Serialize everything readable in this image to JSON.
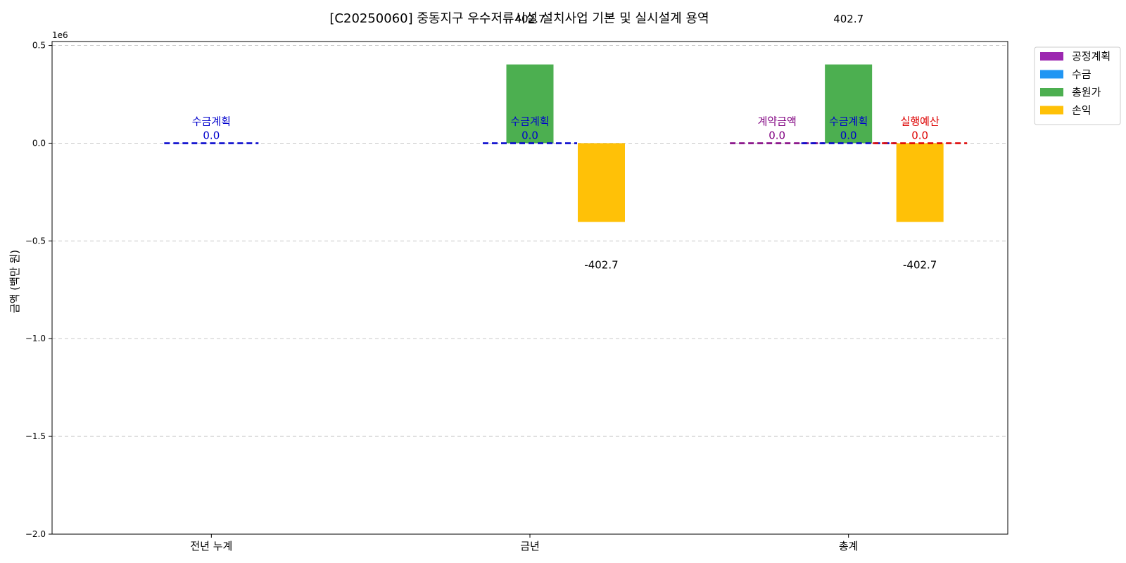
{
  "chart_data": {
    "type": "bar",
    "title": "[C20250060] 중동지구 우수저류시설 설치사업 기본 및 실시설계 용역",
    "ylabel": "금액 (백만 원)",
    "xlabel": "",
    "y_offset_label": "1e6",
    "categories": [
      "전년 누계",
      "금년",
      "총계"
    ],
    "ylim": [
      -2000000,
      520000
    ],
    "yticks": [
      0.5,
      0.0,
      -0.5,
      -1.0,
      -1.5,
      -2.0
    ],
    "yticks_scale": 1000000,
    "ytick_labels": [
      "0.5",
      "0.0",
      "−0.5",
      "−1.0",
      "−1.5",
      "−2.0"
    ],
    "grid": true,
    "legend_position": "upper-right-outside",
    "series": [
      {
        "name": "공정계획",
        "color": "#9C27B0",
        "values": [
          null,
          null,
          null
        ]
      },
      {
        "name": "수금",
        "color": "#2196F3",
        "values": [
          null,
          null,
          null
        ]
      },
      {
        "name": "총원가",
        "color": "#4CAF50",
        "values": [
          null,
          402700,
          402700
        ]
      },
      {
        "name": "손익",
        "color": "#FFC107",
        "values": [
          null,
          -402700,
          -402700
        ]
      }
    ],
    "bar_labels": [
      {
        "category": 1,
        "series": 2,
        "text": "402.7"
      },
      {
        "category": 1,
        "series": 3,
        "text": "-402.7"
      },
      {
        "category": 2,
        "series": 2,
        "text": "402.7"
      },
      {
        "category": 2,
        "series": 3,
        "text": "-402.7"
      }
    ],
    "reference_lines": [
      {
        "category": 0,
        "slot": 0,
        "name": "수금계획",
        "value_label": "0.0",
        "value": 0,
        "color": "#0000CC"
      },
      {
        "category": 1,
        "slot": 0,
        "name": "수금계획",
        "value_label": "0.0",
        "value": 0,
        "color": "#0000CC"
      },
      {
        "category": 2,
        "slot": -1,
        "name": "계약금액",
        "value_label": "0.0",
        "value": 0,
        "color": "#800080"
      },
      {
        "category": 2,
        "slot": 0,
        "name": "수금계획",
        "value_label": "0.0",
        "value": 0,
        "color": "#0000CC"
      },
      {
        "category": 2,
        "slot": 1,
        "name": "실행예산",
        "value_label": "0.0",
        "value": 0,
        "color": "#DD0000"
      }
    ]
  }
}
